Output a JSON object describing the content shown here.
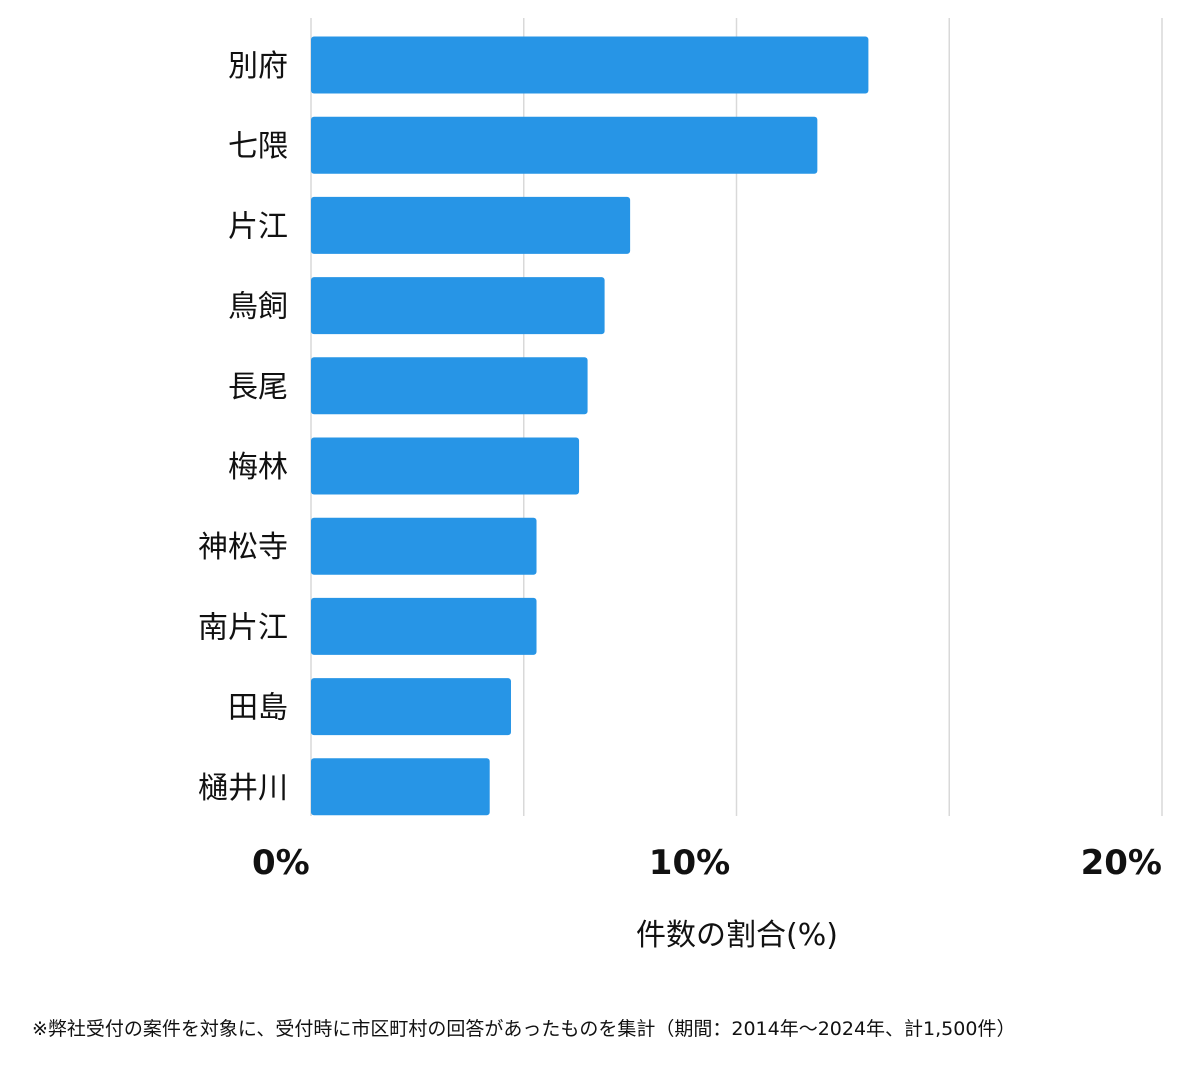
{
  "chart_data": {
    "type": "bar",
    "orientation": "horizontal",
    "categories": [
      "別府",
      "七隈",
      "片江",
      "鳥飼",
      "長尾",
      "梅林",
      "神松寺",
      "南片江",
      "田島",
      "樋井川"
    ],
    "values": [
      13.1,
      11.9,
      7.5,
      6.9,
      6.5,
      6.3,
      5.3,
      5.3,
      4.7,
      4.2
    ],
    "xlim": [
      0,
      20
    ],
    "ticks": [
      {
        "value": 0,
        "label": "0%"
      },
      {
        "value": 10,
        "label": "10%"
      },
      {
        "value": 20,
        "label": "20%"
      }
    ],
    "gridlines": [
      0,
      5,
      10,
      15,
      20
    ],
    "xlabel": "件数の割合(%)",
    "bar_color": "#2795e6",
    "grid_color": "#d9d9d9"
  },
  "footnote": "※弊社受付の案件を対象に、受付時に市区町村の回答があったものを集計（期間：2014年～2024年、計1,500件）"
}
